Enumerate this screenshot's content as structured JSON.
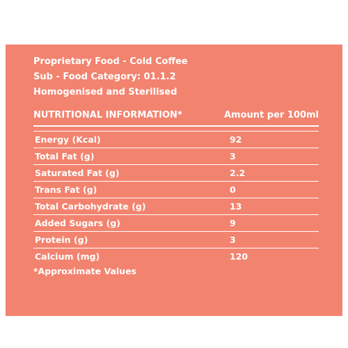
{
  "header": {
    "line1": "Proprietary Food - Cold Coffee",
    "line2": "Sub - Food Category: 01.1.2",
    "line3": "Homogenised and Sterilised"
  },
  "table": {
    "col1_heading": "NUTRITIONAL INFORMATION*",
    "col2_heading": "Amount per 100ml",
    "rows": [
      {
        "label": "Energy (Kcal)",
        "value": "92"
      },
      {
        "label": "Total Fat (g)",
        "value": "3"
      },
      {
        "label": "Saturated Fat (g)",
        "value": "2.2"
      },
      {
        "label": "Trans Fat (g)",
        "value": "0"
      },
      {
        "label": "Total Carbohydrate (g)",
        "value": "13"
      },
      {
        "label": "Added Sugars (g)",
        "value": "9"
      },
      {
        "label": "Protein (g)",
        "value": "3"
      },
      {
        "label": "Calcium (mg)",
        "value": "120"
      }
    ]
  },
  "footnote": "*Approximate Values",
  "colors": {
    "panel": "#f2836f",
    "text": "#ffffff"
  }
}
